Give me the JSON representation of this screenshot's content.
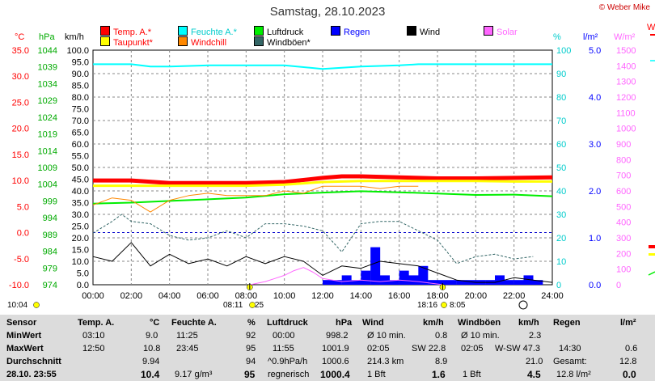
{
  "title": "Samstag, 28.10.2023",
  "copyright": "© Weber Mike",
  "legend": [
    {
      "label": "Temp. A.*",
      "color": "#ff0000"
    },
    {
      "label": "Feuchte A.*",
      "color": "#00ffff"
    },
    {
      "label": "Luftdruck",
      "color": "#00ee00"
    },
    {
      "label": "Regen",
      "color": "#0000ff"
    },
    {
      "label": "Wind",
      "color": "#000000"
    },
    {
      "label": "Solar",
      "color": "#ff66ff"
    },
    {
      "label": "Taupunkt*",
      "color": "#ffff00"
    },
    {
      "label": "Windchill",
      "color": "#ff8800"
    },
    {
      "label": "Windböen*",
      "color": "#336666"
    }
  ],
  "units": {
    "temp": "°C",
    "pressure": "hPa",
    "wind": "km/h",
    "humidity": "%",
    "rain": "l/m²",
    "solar": "W/m²",
    "right_edge": "W"
  },
  "axes": {
    "temp_ticks": [
      "35.0",
      "30.0",
      "25.0",
      "20.0",
      "15.0",
      "10.0",
      "5.0",
      "0.0",
      "-5.0",
      "-10.0"
    ],
    "pressure_ticks": [
      "1044",
      "1039",
      "1034",
      "1029",
      "1024",
      "1019",
      "1014",
      "1009",
      "1004",
      "999",
      "994",
      "989",
      "984",
      "979",
      "974"
    ],
    "wind_ticks": [
      "100.0",
      "95.0",
      "90.0",
      "85.0",
      "80.0",
      "75.0",
      "70.0",
      "65.0",
      "60.0",
      "55.0",
      "50.0",
      "45.0",
      "40.0",
      "35.0",
      "30.0",
      "25.0",
      "20.0",
      "15.0",
      "10.0",
      "5.0",
      "0.0"
    ],
    "humidity_ticks": [
      "100",
      "90",
      "80",
      "70",
      "60",
      "50",
      "40",
      "30",
      "20",
      "10",
      "0"
    ],
    "rain_ticks": [
      "5.0",
      "4.0",
      "3.0",
      "2.0",
      "1.0",
      "0.0"
    ],
    "solar_ticks": [
      "1500",
      "1400",
      "1300",
      "1200",
      "1100",
      "1000",
      "900",
      "800",
      "700",
      "600",
      "500",
      "400",
      "300",
      "200",
      "100",
      "0"
    ],
    "time_ticks": [
      "00:00",
      "02:00",
      "04:00",
      "06:00",
      "08:00",
      "10:00",
      "12:00",
      "14:00",
      "16:00",
      "18:00",
      "20:00",
      "22:00",
      "24:00"
    ]
  },
  "sun": {
    "sunrise": "08:11",
    "sunset": "18:16",
    "moonrise": "10:04",
    "moonset": "8:05",
    "sunrise_tail": "25"
  },
  "chart_data": {
    "type": "line",
    "x_unit": "hours",
    "xlim": [
      0,
      24
    ],
    "series": [
      {
        "name": "Temp. A.*",
        "axis": "°C",
        "color": "#ff0000",
        "x": [
          0,
          2,
          4,
          6,
          8,
          10,
          12,
          13,
          14,
          16,
          18,
          20,
          22,
          24
        ],
        "y": [
          10.0,
          10.0,
          9.5,
          9.5,
          9.5,
          9.7,
          10.5,
          10.8,
          10.8,
          10.6,
          10.4,
          10.4,
          10.5,
          10.6
        ]
      },
      {
        "name": "Taupunkt*",
        "axis": "°C",
        "color": "#ffff00",
        "x": [
          0,
          2,
          4,
          6,
          8,
          10,
          12,
          14,
          16,
          18,
          20,
          22,
          24
        ],
        "y": [
          9.0,
          9.0,
          9.0,
          9.0,
          9.0,
          9.2,
          9.7,
          9.9,
          9.9,
          9.9,
          9.9,
          9.8,
          9.8
        ]
      },
      {
        "name": "Feuchte A.*",
        "axis": "%",
        "color": "#00ffff",
        "x": [
          0,
          2,
          3,
          4,
          6,
          8,
          10,
          12,
          13,
          14,
          16,
          17,
          18,
          20,
          22,
          24
        ],
        "y": [
          94,
          94,
          93,
          93,
          93.5,
          93.5,
          93.5,
          92,
          92.5,
          93,
          93.5,
          94,
          94,
          94,
          94,
          94
        ]
      },
      {
        "name": "Luftdruck",
        "axis": "hPa",
        "color": "#00ee00",
        "x": [
          0,
          2,
          4,
          6,
          8,
          10,
          12,
          14,
          16,
          18,
          20,
          22,
          24
        ],
        "y": [
          998.2,
          998.5,
          999.0,
          999.5,
          1000.0,
          1001.0,
          1001.5,
          1001.9,
          1001.6,
          1001.2,
          1000.8,
          1000.9,
          1000.4
        ]
      },
      {
        "name": "Windchill",
        "axis": "km/h",
        "color": "#ff8800",
        "x": [
          0,
          1,
          2,
          3,
          4,
          5,
          6,
          7,
          8,
          9,
          10,
          11,
          12,
          13,
          14,
          15,
          16,
          17
        ],
        "y": [
          34,
          37,
          36,
          31,
          36,
          38,
          39,
          38,
          38,
          38,
          40,
          39,
          42,
          42,
          42,
          41,
          42,
          42
        ]
      },
      {
        "name": "Windböen*",
        "axis": "km/h",
        "color": "#336666",
        "x": [
          0,
          1,
          1.5,
          2,
          3,
          4,
          5,
          6,
          7,
          8,
          9,
          10,
          11,
          12,
          13,
          14,
          15,
          16,
          17,
          18,
          19,
          20,
          21,
          22,
          23
        ],
        "y": [
          22,
          27,
          30,
          27,
          26,
          21,
          19,
          20,
          23,
          20,
          26,
          26,
          25,
          23,
          14,
          26,
          27,
          27,
          23,
          19,
          9,
          12,
          13,
          11,
          12
        ]
      },
      {
        "name": "Wind",
        "axis": "km/h",
        "color": "#000000",
        "x": [
          0,
          1,
          2,
          3,
          4,
          5,
          6,
          7,
          8,
          9,
          10,
          11,
          12,
          13,
          14,
          15,
          16,
          17,
          18,
          19,
          20,
          21,
          22,
          23,
          24
        ],
        "y": [
          12,
          10,
          18,
          8,
          13,
          9,
          11,
          8,
          12,
          9,
          12,
          10,
          4,
          8,
          7,
          10,
          9,
          8,
          5,
          2,
          1,
          1,
          3,
          2,
          1
        ]
      },
      {
        "name": "Solar",
        "axis": "W/m²",
        "color": "#ff66ff",
        "x": [
          8.2,
          9,
          9.5,
          10,
          10.5,
          11,
          11.5,
          12,
          13,
          14,
          15,
          16,
          17,
          18.3
        ],
        "y": [
          0,
          20,
          40,
          60,
          90,
          110,
          80,
          40,
          20,
          30,
          20,
          30,
          20,
          0
        ]
      },
      {
        "name": "Regen",
        "axis": "l/m²",
        "color": "#0000ff",
        "x": [
          12,
          12.5,
          13,
          13.5,
          14,
          14.5,
          15,
          15.5,
          16,
          16.5,
          17,
          17.5,
          18,
          18.5,
          19,
          19.5,
          20,
          20.5,
          21,
          21.5,
          22,
          22.5,
          23
        ],
        "y": [
          0.1,
          0.1,
          0.2,
          0.1,
          0.3,
          0.8,
          0.2,
          0.1,
          0.3,
          0.2,
          0.4,
          0.1,
          0.1,
          0.1,
          0.1,
          0.1,
          0.1,
          0.1,
          0.2,
          0.1,
          0.1,
          0.2,
          0.1
        ]
      }
    ]
  },
  "stats": {
    "row_labels": [
      "Sensor",
      "MinWert",
      "MaxWert",
      "Durchschnitt",
      "28.10. 23:55"
    ],
    "temp": {
      "header": "Temp. A.",
      "unit": "°C",
      "min_time": "03:10",
      "min": "9.0",
      "max_time": "12:50",
      "max": "10.8",
      "avg": "9.94",
      "cur": "10.4"
    },
    "humidity": {
      "header": "Feuchte A.",
      "unit": "%",
      "min_time": "11:25",
      "min": "92",
      "max_time": "23:45",
      "max": "95",
      "avg": "94",
      "extra": "9.17 g/m³",
      "cur": "95"
    },
    "pressure": {
      "header": "Luftdruck",
      "unit": "hPa",
      "min_time": "00:00",
      "min": "998.2",
      "max_time": "11:55",
      "max": "1001.9",
      "trend_label": "^0.9hPa/h",
      "avg": "1000.6",
      "state": "regnerisch",
      "cur": "1000.4"
    },
    "wind": {
      "header": "Wind",
      "unit": "km/h",
      "r1_label": "Ø 10 min.",
      "r1": "0.8",
      "r2_time": "02:05",
      "r2_dir": "SW 22.8",
      "r3_label": "214.3 km",
      "r3": "8.9",
      "bft": "1 Bft",
      "cur": "1.6"
    },
    "gusts": {
      "header": "Windböen",
      "unit": "km/h",
      "r1_label": "Ø 10 min.",
      "r1": "2.3",
      "r2_time": "02:05",
      "r2_dir": "W-SW 47.3",
      "r3": "21.0",
      "bft": "1 Bft",
      "cur": "4.5"
    },
    "rain": {
      "header": "Regen",
      "unit": "l/m²",
      "r2_time": "14:30",
      "r2": "0.6",
      "r3_label": "Gesamt:",
      "r3": "12.8",
      "cur_label": "12.8 l/m²",
      "cur": "0.0"
    }
  }
}
